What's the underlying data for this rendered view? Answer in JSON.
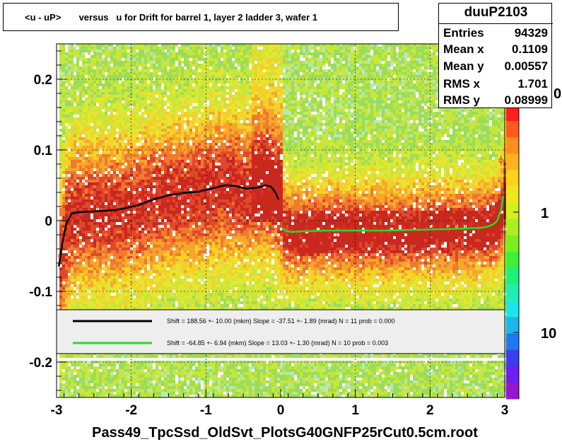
{
  "title": "<u - uP>       versus   u for Drift for barrel 1, layer 2 ladder 3, wafer 1",
  "footer": "Pass49_TpcSsd_OldSvt_PlotsG40GNFP25rCut0.5cm.root",
  "stats": {
    "name": "duuP2103",
    "rows": [
      {
        "label": "Entries",
        "value": "94329"
      },
      {
        "label": "Mean x",
        "value": "0.1109"
      },
      {
        "label": "Mean y",
        "value": "0.00557"
      },
      {
        "label": "RMS x",
        "value": "1.701"
      },
      {
        "label": "RMS y",
        "value": "0.08999"
      }
    ]
  },
  "legend": [
    {
      "color": "#000000",
      "text": "Shift =   188.56 +- 10.00 (mkm) Slope =   -37.51 +- 1.89 (mrad)  N = 11 prob = 0.000"
    },
    {
      "color": "#22dd22",
      "text": "Shift =   -64.85 +- 6.94 (mkm) Slope =    13.03 +- 1.30 (mrad)  N = 10 prob = 0.003"
    }
  ],
  "colors": {
    "fit_left": "#000000",
    "fit_right": "#22dd22",
    "points": "#e8302a"
  },
  "chart_data": {
    "type": "heatmap",
    "title": "<u - uP>       versus   u for Drift for barrel 1, layer 2 ladder 3, wafer 1",
    "xlim": [
      -3,
      3
    ],
    "ylim": [
      -0.25,
      0.25
    ],
    "x_ticks": [
      "-3",
      "-2",
      "-1",
      "0",
      "1",
      "2",
      "3"
    ],
    "y_ticks": [
      "0.2",
      "0.1",
      "0",
      "-0.1",
      "-0.2"
    ],
    "z_scale": "log",
    "z_ticks": [
      "10",
      "1"
    ],
    "z_tick_label_fragment": "0",
    "grid": true,
    "series": [
      {
        "kind": "profile_points",
        "x": [
          -2.95,
          -2.85,
          -2.75,
          -2.65,
          -2.55,
          -2.45,
          -2.35,
          -2.25,
          -2.15,
          -2.05,
          -1.95,
          -1.85,
          -1.75,
          -1.65,
          -1.55,
          -1.45,
          -1.35,
          -1.25,
          -1.15,
          -1.05,
          -0.95,
          -0.85,
          -0.75,
          -0.65,
          -0.55,
          -0.45,
          -0.35,
          -0.25,
          -0.15,
          -0.05,
          0.05,
          0.15,
          0.25,
          0.35,
          0.45,
          0.55,
          0.65,
          0.75,
          0.85,
          0.95,
          1.05,
          1.15,
          1.25,
          1.35,
          1.45,
          1.55,
          1.65,
          1.75,
          1.85,
          1.95,
          2.05,
          2.15,
          2.25,
          2.35,
          2.45,
          2.55,
          2.65,
          2.75,
          2.85,
          2.95
        ],
        "y": [
          -0.05,
          -0.02,
          0.008,
          0.01,
          0.013,
          0.012,
          0.015,
          0.016,
          0.012,
          0.02,
          0.025,
          0.03,
          0.035,
          0.038,
          0.03,
          0.034,
          0.03,
          0.035,
          0.032,
          0.038,
          0.04,
          0.045,
          0.05,
          0.045,
          0.03,
          0.04,
          0.035,
          0.04,
          0.045,
          0.035,
          -0.012,
          -0.015,
          -0.018,
          -0.01,
          -0.015,
          -0.012,
          -0.02,
          -0.015,
          -0.01,
          -0.012,
          -0.015,
          -0.01,
          -0.012,
          -0.018,
          -0.015,
          -0.01,
          -0.012,
          -0.01,
          -0.008,
          -0.012,
          -0.01,
          -0.008,
          -0.012,
          -0.01,
          -0.008,
          -0.005,
          -0.01,
          0.005,
          0.015,
          0.085
        ]
      },
      {
        "kind": "fit_left",
        "x": [
          -2.97,
          -2.92,
          -2.87,
          -2.8,
          -2.7,
          -2.5,
          -2.2,
          -1.9,
          -1.7,
          -1.5,
          -1.3,
          -1.1,
          -0.9,
          -0.75,
          -0.6,
          -0.45,
          -0.3,
          -0.2,
          -0.13,
          -0.07,
          -0.03
        ],
        "y": [
          -0.065,
          -0.03,
          -0.005,
          0.01,
          0.012,
          0.013,
          0.015,
          0.022,
          0.03,
          0.036,
          0.039,
          0.041,
          0.046,
          0.05,
          0.049,
          0.045,
          0.047,
          0.05,
          0.048,
          0.04,
          0.03
        ]
      },
      {
        "kind": "fit_right",
        "x": [
          0.02,
          0.08,
          0.15,
          0.3,
          0.6,
          1.0,
          1.4,
          1.8,
          2.2,
          2.5,
          2.7,
          2.78,
          2.85,
          2.9,
          2.95,
          2.98
        ],
        "y": [
          -0.01,
          -0.015,
          -0.016,
          -0.015,
          -0.014,
          -0.014,
          -0.014,
          -0.013,
          -0.012,
          -0.011,
          -0.01,
          -0.008,
          -0.005,
          0.0,
          0.015,
          0.035
        ]
      }
    ]
  }
}
